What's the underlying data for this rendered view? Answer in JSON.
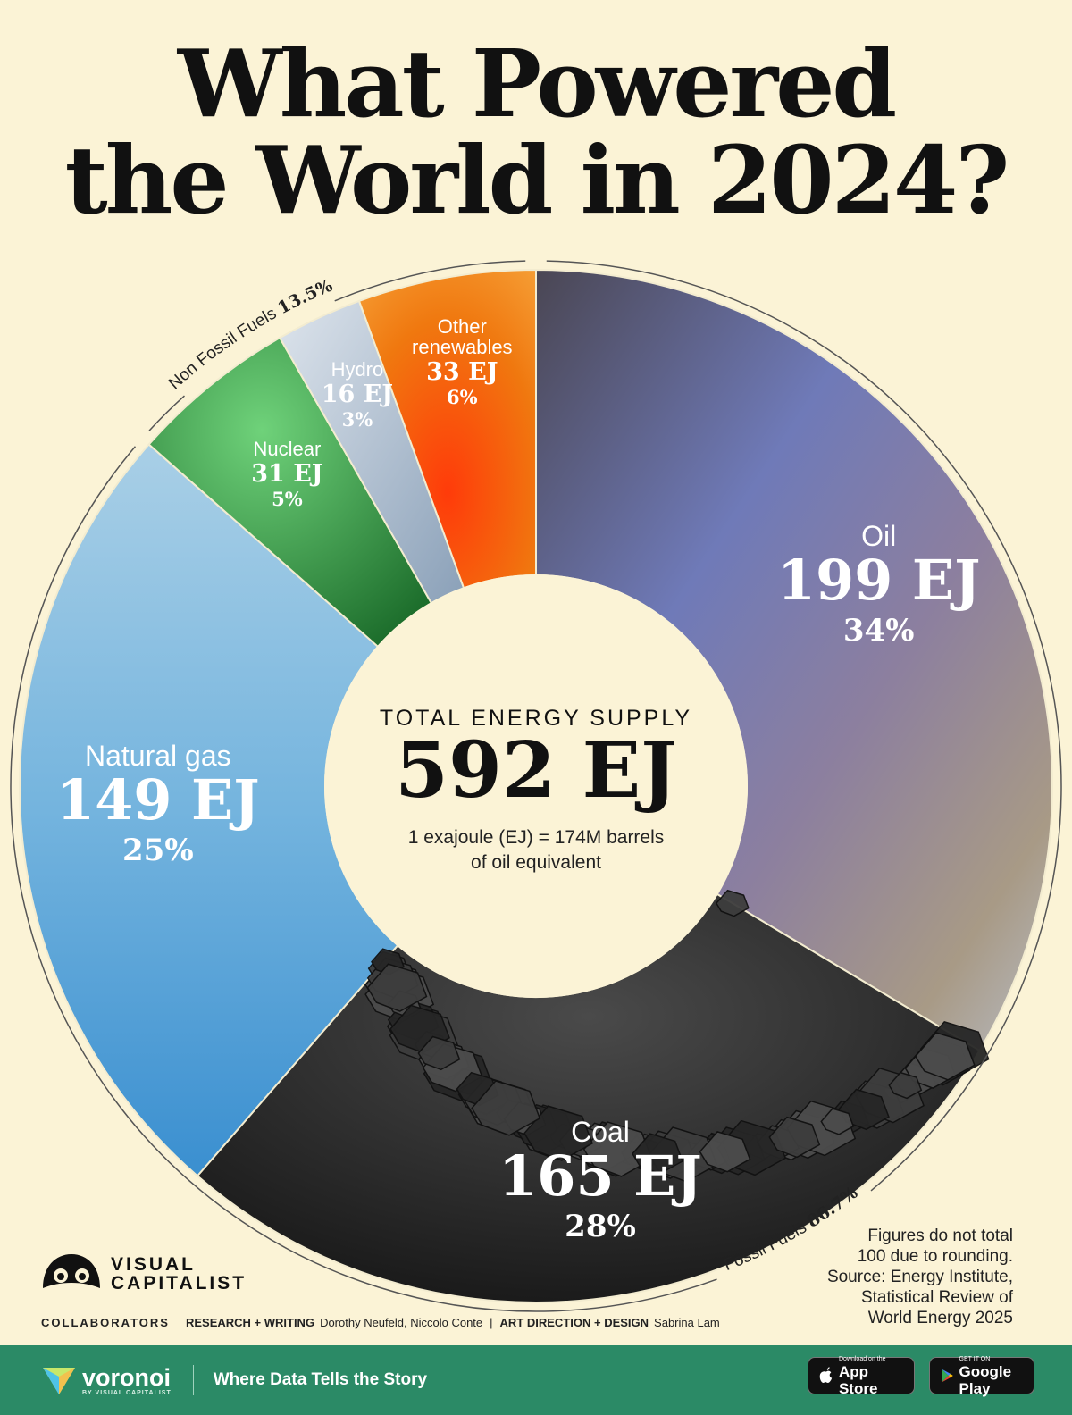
{
  "title": {
    "line1": "What Powered",
    "line2": "the World in 2024?"
  },
  "chart_data": {
    "type": "pie",
    "variant": "donut",
    "title": "What Powered the World in 2024?",
    "unit": "EJ",
    "slices": [
      {
        "name": "Oil",
        "value": 199,
        "value_text": "199 EJ",
        "pct": 34,
        "pct_text": "34%",
        "group": "fossil",
        "color": "#7c7a95"
      },
      {
        "name": "Coal",
        "value": 165,
        "value_text": "165 EJ",
        "pct": 28,
        "pct_text": "28%",
        "group": "fossil",
        "color": "#2b2b2b"
      },
      {
        "name": "Natural gas",
        "value": 149,
        "value_text": "149 EJ",
        "pct": 25,
        "pct_text": "25%",
        "group": "fossil",
        "color": "#5aa4d6"
      },
      {
        "name": "Nuclear",
        "value": 31,
        "value_text": "31 EJ",
        "pct": 5,
        "pct_text": "5%",
        "group": "non-fossil",
        "color": "#2f9a45"
      },
      {
        "name": "Hydro",
        "value": 16,
        "value_text": "16 EJ",
        "pct": 3,
        "pct_text": "3%",
        "group": "non-fossil",
        "color": "#9fb3c8"
      },
      {
        "name": "Other renewables",
        "value": 33,
        "value_text": "33 EJ",
        "pct": 6,
        "pct_text": "6%",
        "group": "non-fossil",
        "color": "#e8580f"
      }
    ],
    "groups": [
      {
        "name": "Non Fossil Fuels",
        "pct_text": "13.5%"
      },
      {
        "name": "Fossil Fuels",
        "pct_text": "86.7%"
      }
    ],
    "center": {
      "kicker": "TOTAL ENERGY SUPPLY",
      "total": "592 EJ",
      "note_line1": "1 exajoule (EJ) = 174M barrels",
      "note_line2": "of oil equivalent"
    }
  },
  "footnote": {
    "line1": "Figures do not total",
    "line2": "100 due to rounding.",
    "line3": "Source: Energy Institute,",
    "line4": "Statistical Review of",
    "line5": "World Energy 2025"
  },
  "logo": {
    "line1": "VISUAL",
    "line2": "CAPITALIST"
  },
  "credits": {
    "collaborators": "COLLABORATORS",
    "research_label": "RESEARCH + WRITING",
    "research_names": "Dorothy Neufeld, Niccolo Conte",
    "separator": "|",
    "design_label": "ART DIRECTION + DESIGN",
    "design_names": "Sabrina Lam"
  },
  "footer": {
    "brand": "voronoi",
    "brand_sub": "BY VISUAL CAPITALIST",
    "tagline": "Where Data Tells the Story",
    "appstore_small": "Download on the",
    "appstore_big": "App Store",
    "googleplay_small": "GET IT ON",
    "googleplay_big": "Google Play"
  },
  "icons": {
    "logo": "visual-capitalist-logo-icon",
    "brand": "voronoi-logo-icon",
    "apple": "apple-icon",
    "play": "google-play-icon"
  }
}
